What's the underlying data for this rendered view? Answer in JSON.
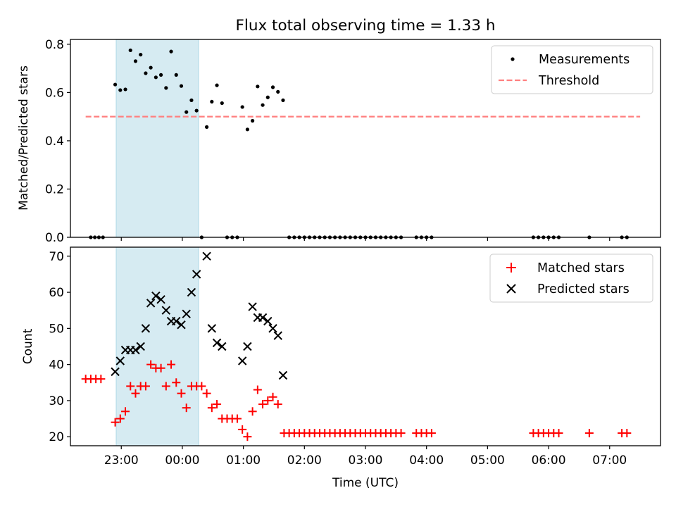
{
  "title": "Flux total observing time = 1.33 h",
  "xlabel": "Time (UTC)",
  "x_ticks": [
    "23:00",
    "00:00",
    "01:00",
    "02:00",
    "03:00",
    "04:00",
    "05:00",
    "06:00",
    "07:00"
  ],
  "chart_data": [
    {
      "type": "scatter",
      "ylabel": "Matched/Predicted stars",
      "xlim": [
        "22:10",
        "07:50"
      ],
      "ylim": [
        0,
        0.82
      ],
      "y_ticks": [
        "0.0",
        "0.2",
        "0.4",
        "0.6",
        "0.8"
      ],
      "legend_position": "top-right",
      "highlight_span": [
        "22:55",
        "00:16"
      ],
      "series": [
        {
          "name": "Measurements",
          "marker": "dot",
          "color": "#000000",
          "points": [
            [
              "22:30",
              0
            ],
            [
              "22:34",
              0
            ],
            [
              "22:38",
              0
            ],
            [
              "22:42",
              0
            ],
            [
              "22:54",
              0.633
            ],
            [
              "22:59",
              0.61
            ],
            [
              "23:04",
              0.613
            ],
            [
              "23:09",
              0.775
            ],
            [
              "23:14",
              0.73
            ],
            [
              "23:19",
              0.757
            ],
            [
              "23:24",
              0.68
            ],
            [
              "23:29",
              0.703
            ],
            [
              "23:34",
              0.663
            ],
            [
              "23:39",
              0.673
            ],
            [
              "23:44",
              0.619
            ],
            [
              "23:49",
              0.77
            ],
            [
              "23:54",
              0.673
            ],
            [
              "23:59",
              0.627
            ],
            [
              "00:04",
              0.519
            ],
            [
              "00:09",
              0.568
            ],
            [
              "00:14",
              0.525
            ],
            [
              "00:19",
              0
            ],
            [
              "00:24",
              0.457
            ],
            [
              "00:29",
              0.562
            ],
            [
              "00:34",
              0.63
            ],
            [
              "00:39",
              0.556
            ],
            [
              "00:44",
              0
            ],
            [
              "00:49",
              0
            ],
            [
              "00:54",
              0
            ],
            [
              "00:59",
              0.54
            ],
            [
              "01:04",
              0.447
            ],
            [
              "01:09",
              0.483
            ],
            [
              "01:14",
              0.625
            ],
            [
              "01:19",
              0.548
            ],
            [
              "01:24",
              0.58
            ],
            [
              "01:29",
              0.622
            ],
            [
              "01:34",
              0.603
            ],
            [
              "01:39",
              0.568
            ],
            [
              "01:45",
              0
            ],
            [
              "01:50",
              0
            ],
            [
              "01:55",
              0
            ],
            [
              "02:00",
              0
            ],
            [
              "02:05",
              0
            ],
            [
              "02:10",
              0
            ],
            [
              "02:15",
              0
            ],
            [
              "02:20",
              0
            ],
            [
              "02:25",
              0
            ],
            [
              "02:30",
              0
            ],
            [
              "02:35",
              0
            ],
            [
              "02:40",
              0
            ],
            [
              "02:45",
              0
            ],
            [
              "02:50",
              0
            ],
            [
              "02:55",
              0
            ],
            [
              "03:00",
              0
            ],
            [
              "03:05",
              0
            ],
            [
              "03:10",
              0
            ],
            [
              "03:15",
              0
            ],
            [
              "03:20",
              0
            ],
            [
              "03:25",
              0
            ],
            [
              "03:30",
              0
            ],
            [
              "03:35",
              0
            ],
            [
              "03:50",
              0
            ],
            [
              "03:55",
              0
            ],
            [
              "04:00",
              0
            ],
            [
              "04:05",
              0
            ],
            [
              "05:45",
              0
            ],
            [
              "05:50",
              0
            ],
            [
              "05:55",
              0
            ],
            [
              "06:00",
              0
            ],
            [
              "06:05",
              0
            ],
            [
              "06:10",
              0
            ],
            [
              "06:40",
              0
            ],
            [
              "07:12",
              0
            ],
            [
              "07:17",
              0
            ]
          ]
        },
        {
          "name": "Threshold",
          "line_style": "dashed",
          "color": "#ff7f7f",
          "points": [
            [
              "22:25",
              0.5
            ],
            [
              "07:30",
              0.5
            ]
          ]
        }
      ]
    },
    {
      "type": "scatter",
      "ylabel": "Count",
      "xlim": [
        "22:10",
        "07:50"
      ],
      "ylim": [
        17.5,
        72.5
      ],
      "y_ticks": [
        "20",
        "30",
        "40",
        "50",
        "60",
        "70"
      ],
      "legend_position": "top-right",
      "highlight_span": [
        "22:55",
        "00:16"
      ],
      "series": [
        {
          "name": "Matched stars",
          "marker": "+",
          "color": "#ff0000",
          "points": [
            [
              "22:25",
              36
            ],
            [
              "22:30",
              36
            ],
            [
              "22:35",
              36
            ],
            [
              "22:40",
              36
            ],
            [
              "22:54",
              24
            ],
            [
              "22:59",
              25
            ],
            [
              "23:04",
              27
            ],
            [
              "23:09",
              34
            ],
            [
              "23:14",
              32
            ],
            [
              "23:19",
              34
            ],
            [
              "23:24",
              34
            ],
            [
              "23:29",
              40
            ],
            [
              "23:34",
              39
            ],
            [
              "23:39",
              39
            ],
            [
              "23:44",
              34
            ],
            [
              "23:49",
              40
            ],
            [
              "23:54",
              35
            ],
            [
              "23:59",
              32
            ],
            [
              "00:04",
              28
            ],
            [
              "00:09",
              34
            ],
            [
              "00:14",
              34
            ],
            [
              "00:19",
              34
            ],
            [
              "00:24",
              32
            ],
            [
              "00:29",
              28
            ],
            [
              "00:34",
              29
            ],
            [
              "00:39",
              25
            ],
            [
              "00:44",
              25
            ],
            [
              "00:49",
              25
            ],
            [
              "00:54",
              25
            ],
            [
              "00:59",
              22
            ],
            [
              "01:04",
              20
            ],
            [
              "01:09",
              27
            ],
            [
              "01:14",
              33
            ],
            [
              "01:19",
              29
            ],
            [
              "01:24",
              30
            ],
            [
              "01:29",
              31
            ],
            [
              "01:34",
              29
            ],
            [
              "01:40",
              21
            ],
            [
              "01:45",
              21
            ],
            [
              "01:50",
              21
            ],
            [
              "01:55",
              21
            ],
            [
              "02:00",
              21
            ],
            [
              "02:05",
              21
            ],
            [
              "02:10",
              21
            ],
            [
              "02:15",
              21
            ],
            [
              "02:20",
              21
            ],
            [
              "02:25",
              21
            ],
            [
              "02:30",
              21
            ],
            [
              "02:35",
              21
            ],
            [
              "02:40",
              21
            ],
            [
              "02:45",
              21
            ],
            [
              "02:50",
              21
            ],
            [
              "02:55",
              21
            ],
            [
              "03:00",
              21
            ],
            [
              "03:05",
              21
            ],
            [
              "03:10",
              21
            ],
            [
              "03:15",
              21
            ],
            [
              "03:20",
              21
            ],
            [
              "03:25",
              21
            ],
            [
              "03:30",
              21
            ],
            [
              "03:35",
              21
            ],
            [
              "03:50",
              21
            ],
            [
              "03:55",
              21
            ],
            [
              "04:00",
              21
            ],
            [
              "04:05",
              21
            ],
            [
              "05:45",
              21
            ],
            [
              "05:50",
              21
            ],
            [
              "05:55",
              21
            ],
            [
              "06:00",
              21
            ],
            [
              "06:05",
              21
            ],
            [
              "06:10",
              21
            ],
            [
              "06:40",
              21
            ],
            [
              "07:12",
              21
            ],
            [
              "07:17",
              21
            ]
          ]
        },
        {
          "name": "Predicted stars",
          "marker": "x",
          "color": "#000000",
          "points": [
            [
              "22:54",
              38
            ],
            [
              "22:59",
              41
            ],
            [
              "23:04",
              44
            ],
            [
              "23:09",
              44
            ],
            [
              "23:14",
              44
            ],
            [
              "23:19",
              45
            ],
            [
              "23:24",
              50
            ],
            [
              "23:29",
              57
            ],
            [
              "23:34",
              59
            ],
            [
              "23:39",
              58
            ],
            [
              "23:44",
              55
            ],
            [
              "23:49",
              52
            ],
            [
              "23:54",
              52
            ],
            [
              "23:59",
              51
            ],
            [
              "00:04",
              54
            ],
            [
              "00:09",
              60
            ],
            [
              "00:14",
              65
            ],
            [
              "00:24",
              70
            ],
            [
              "00:29",
              50
            ],
            [
              "00:34",
              46
            ],
            [
              "00:39",
              45
            ],
            [
              "00:59",
              41
            ],
            [
              "01:04",
              45
            ],
            [
              "01:09",
              56
            ],
            [
              "01:14",
              53
            ],
            [
              "01:19",
              53
            ],
            [
              "01:24",
              52
            ],
            [
              "01:29",
              50
            ],
            [
              "01:34",
              48
            ],
            [
              "01:39",
              37
            ]
          ]
        }
      ]
    }
  ]
}
